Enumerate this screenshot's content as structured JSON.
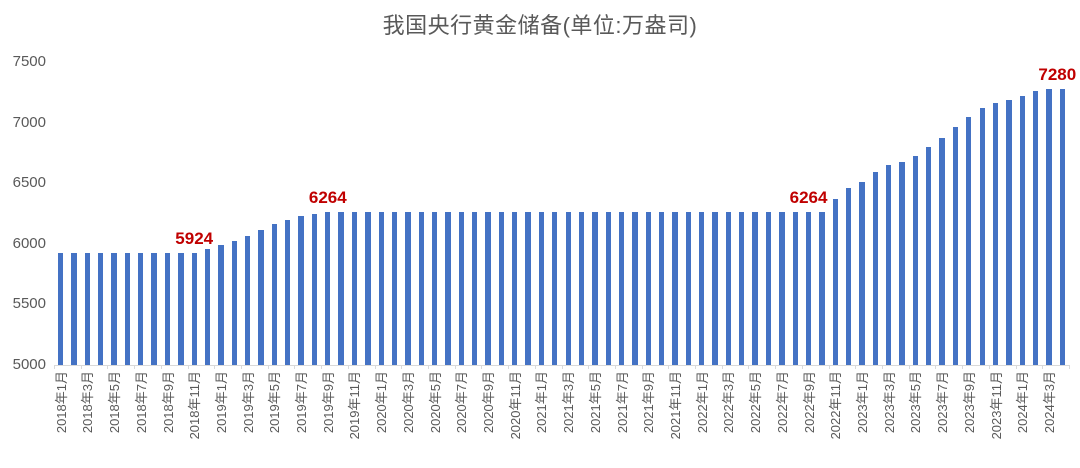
{
  "title": "我国央行黄金储备(单位:万盎司)",
  "colors": {
    "bar": "#4472C4",
    "data_label": "#C00000",
    "axis_text": "#595959",
    "axis_line": "#D9D9D9",
    "title_text": "#595959"
  },
  "chart_data": {
    "type": "bar",
    "title": "我国央行黄金储备(单位:万盎司)",
    "xlabel": "",
    "ylabel": "",
    "ylim": [
      5000,
      7500
    ],
    "yticks": [
      5000,
      5500,
      6000,
      6500,
      7000,
      7500
    ],
    "grid": false,
    "legend": false,
    "x_tick_interval": 2,
    "x": [
      "2018年1月",
      "2018年2月",
      "2018年3月",
      "2018年4月",
      "2018年5月",
      "2018年6月",
      "2018年7月",
      "2018年8月",
      "2018年9月",
      "2018年10月",
      "2018年11月",
      "2018年12月",
      "2019年1月",
      "2019年2月",
      "2019年3月",
      "2019年4月",
      "2019年5月",
      "2019年6月",
      "2019年7月",
      "2019年8月",
      "2019年9月",
      "2019年10月",
      "2019年11月",
      "2019年12月",
      "2020年1月",
      "2020年2月",
      "2020年3月",
      "2020年4月",
      "2020年5月",
      "2020年6月",
      "2020年7月",
      "2020年8月",
      "2020年9月",
      "2020年10月",
      "2020年11月",
      "2020年12月",
      "2021年1月",
      "2021年2月",
      "2021年3月",
      "2021年4月",
      "2021年5月",
      "2021年6月",
      "2021年7月",
      "2021年8月",
      "2021年9月",
      "2021年10月",
      "2021年11月",
      "2021年12月",
      "2022年1月",
      "2022年2月",
      "2022年3月",
      "2022年4月",
      "2022年5月",
      "2022年6月",
      "2022年7月",
      "2022年8月",
      "2022年9月",
      "2022年10月",
      "2022年11月",
      "2022年12月",
      "2023年1月",
      "2023年2月",
      "2023年3月",
      "2023年4月",
      "2023年5月",
      "2023年6月",
      "2023年7月",
      "2023年8月",
      "2023年9月",
      "2023年10月",
      "2023年11月",
      "2023年12月",
      "2024年1月",
      "2024年2月",
      "2024年3月",
      "2024年4月"
    ],
    "values": [
      5924,
      5924,
      5924,
      5924,
      5924,
      5924,
      5924,
      5924,
      5924,
      5924,
      5924,
      5956,
      5994,
      6026,
      6062,
      6110,
      6161,
      6194,
      6226,
      6245,
      6264,
      6264,
      6264,
      6264,
      6264,
      6264,
      6264,
      6264,
      6264,
      6264,
      6264,
      6264,
      6264,
      6264,
      6264,
      6264,
      6264,
      6264,
      6264,
      6264,
      6264,
      6264,
      6264,
      6264,
      6264,
      6264,
      6264,
      6264,
      6264,
      6264,
      6264,
      6264,
      6264,
      6264,
      6264,
      6264,
      6264,
      6264,
      6367,
      6464,
      6512,
      6592,
      6650,
      6676,
      6727,
      6795,
      6869,
      6962,
      7046,
      7120,
      7158,
      7187,
      7219,
      7258,
      7274,
      7280
    ],
    "annotations": [
      {
        "index": 10,
        "text": "5924",
        "dx": 0
      },
      {
        "index": 20,
        "text": "6264",
        "dx": 0
      },
      {
        "index": 56,
        "text": "6264",
        "dx": 0
      },
      {
        "index": 75,
        "text": "7280",
        "dx": -5
      }
    ]
  }
}
